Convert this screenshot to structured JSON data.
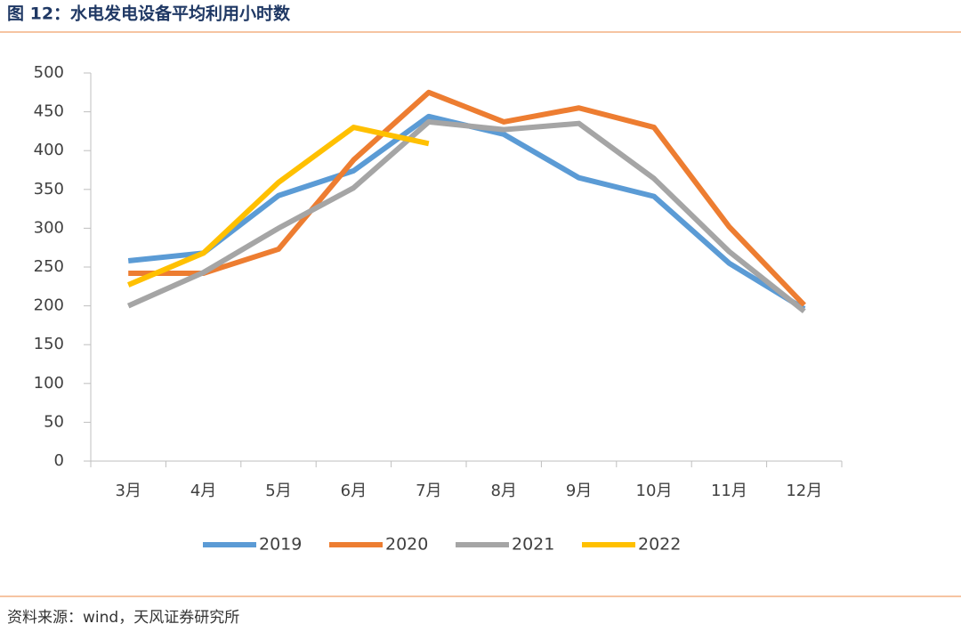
{
  "chart_data": {
    "type": "line",
    "title": "图 12：水电发电设备平均利用小时数",
    "source": "资料来源：wind，天风证券研究所",
    "categories": [
      "3月",
      "4月",
      "5月",
      "6月",
      "7月",
      "8月",
      "9月",
      "10月",
      "11月",
      "12月"
    ],
    "series": [
      {
        "name": "2019",
        "color": "#5b9bd5",
        "values": [
          258,
          268,
          342,
          374,
          444,
          421,
          365,
          341,
          255,
          196
        ]
      },
      {
        "name": "2020",
        "color": "#ed7d31",
        "values": [
          242,
          242,
          273,
          388,
          475,
          437,
          455,
          430,
          302,
          201
        ]
      },
      {
        "name": "2021",
        "color": "#a5a5a5",
        "values": [
          200,
          243,
          300,
          352,
          437,
          427,
          435,
          364,
          270,
          193
        ]
      },
      {
        "name": "2022",
        "color": "#ffc000",
        "values": [
          227,
          268,
          359,
          430,
          409,
          null,
          null,
          null,
          null,
          null
        ]
      }
    ],
    "ylim": [
      0,
      500
    ],
    "yticks": [
      0,
      50,
      100,
      150,
      200,
      250,
      300,
      350,
      400,
      450,
      500
    ],
    "grid": false,
    "legend": "bottom"
  }
}
